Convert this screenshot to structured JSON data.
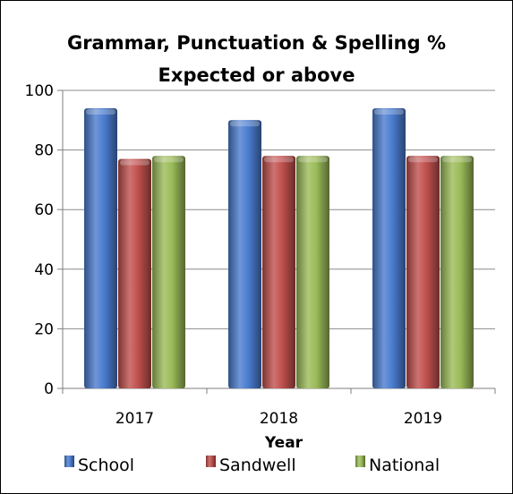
{
  "chart_data": {
    "type": "bar",
    "title_line1": "Grammar, Punctuation & Spelling %",
    "title_line2": "Expected or above",
    "xlabel": "Year",
    "ylabel": "",
    "categories": [
      "2017",
      "2018",
      "2019"
    ],
    "series": [
      {
        "name": "School",
        "values": [
          94,
          90,
          94
        ],
        "color": "#4a7ccf"
      },
      {
        "name": "Sandwell",
        "values": [
          77,
          78,
          78
        ],
        "color": "#c0504d"
      },
      {
        "name": "National",
        "values": [
          78,
          78,
          78
        ],
        "color": "#9bbb59"
      }
    ],
    "ylim": [
      0,
      100
    ],
    "yticks": [
      "0",
      "20",
      "40",
      "60",
      "80",
      "100"
    ],
    "grid": true,
    "legend": "bottom"
  }
}
